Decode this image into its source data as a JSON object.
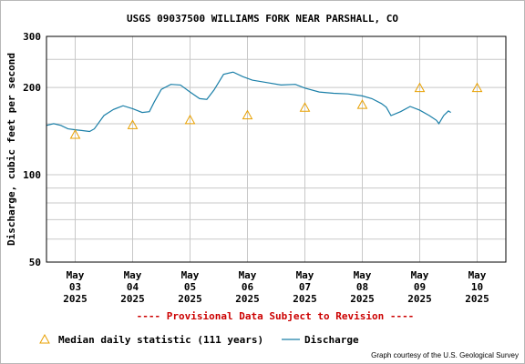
{
  "chart_data": {
    "type": "line",
    "title": "USGS 09037500 WILLIAMS FORK NEAR PARSHALL, CO",
    "ylabel": "Discharge, cubic feet per second",
    "xlabel": "",
    "y_scale": "log",
    "ylim": [
      50,
      300
    ],
    "y_ticks": [
      50,
      100,
      200,
      300
    ],
    "y_minor_gridlines": [
      60,
      70,
      80,
      90,
      150,
      250
    ],
    "xlim": [
      "2025-05-02T12:00",
      "2025-05-10T12:00"
    ],
    "x_ticks": [
      {
        "date": "2025-05-03",
        "month": "May",
        "day": "03",
        "year": "2025"
      },
      {
        "date": "2025-05-04",
        "month": "May",
        "day": "04",
        "year": "2025"
      },
      {
        "date": "2025-05-05",
        "month": "May",
        "day": "05",
        "year": "2025"
      },
      {
        "date": "2025-05-06",
        "month": "May",
        "day": "06",
        "year": "2025"
      },
      {
        "date": "2025-05-07",
        "month": "May",
        "day": "07",
        "year": "2025"
      },
      {
        "date": "2025-05-08",
        "month": "May",
        "day": "08",
        "year": "2025"
      },
      {
        "date": "2025-05-09",
        "month": "May",
        "day": "09",
        "year": "2025"
      },
      {
        "date": "2025-05-10",
        "month": "May",
        "day": "10",
        "year": "2025"
      }
    ],
    "grid": true,
    "legend_position": "bottom",
    "provisional_notice": "---- Provisional Data Subject to Revision ----",
    "credit": "Graph courtesy of the U.S. Geological Survey",
    "series": [
      {
        "name": "Median daily statistic (111 years)",
        "kind": "marker",
        "marker": "triangle",
        "color": "#e8a000",
        "points": [
          {
            "x": "2025-05-03T00:00",
            "y": 138
          },
          {
            "x": "2025-05-04T00:00",
            "y": 149
          },
          {
            "x": "2025-05-05T00:00",
            "y": 155
          },
          {
            "x": "2025-05-06T00:00",
            "y": 161
          },
          {
            "x": "2025-05-07T00:00",
            "y": 171
          },
          {
            "x": "2025-05-08T00:00",
            "y": 175
          },
          {
            "x": "2025-05-09T00:00",
            "y": 200
          },
          {
            "x": "2025-05-10T00:00",
            "y": 200
          }
        ]
      },
      {
        "name": "Discharge",
        "kind": "line",
        "color": "#1a7fa8",
        "points": [
          {
            "x": "2025-05-02T12:00",
            "y": 148
          },
          {
            "x": "2025-05-02T15:00",
            "y": 150
          },
          {
            "x": "2025-05-02T18:00",
            "y": 148
          },
          {
            "x": "2025-05-02T21:00",
            "y": 144
          },
          {
            "x": "2025-05-03T00:00",
            "y": 143
          },
          {
            "x": "2025-05-03T03:00",
            "y": 142
          },
          {
            "x": "2025-05-03T06:00",
            "y": 141
          },
          {
            "x": "2025-05-03T08:00",
            "y": 144
          },
          {
            "x": "2025-05-03T12:00",
            "y": 160
          },
          {
            "x": "2025-05-03T16:00",
            "y": 168
          },
          {
            "x": "2025-05-03T20:00",
            "y": 173
          },
          {
            "x": "2025-05-04T00:00",
            "y": 169
          },
          {
            "x": "2025-05-04T04:00",
            "y": 164
          },
          {
            "x": "2025-05-04T07:00",
            "y": 165
          },
          {
            "x": "2025-05-04T09:00",
            "y": 178
          },
          {
            "x": "2025-05-04T12:00",
            "y": 197
          },
          {
            "x": "2025-05-04T16:00",
            "y": 205
          },
          {
            "x": "2025-05-04T20:00",
            "y": 204
          },
          {
            "x": "2025-05-05T00:00",
            "y": 193
          },
          {
            "x": "2025-05-05T04:00",
            "y": 183
          },
          {
            "x": "2025-05-05T07:00",
            "y": 182
          },
          {
            "x": "2025-05-05T10:00",
            "y": 196
          },
          {
            "x": "2025-05-05T14:00",
            "y": 222
          },
          {
            "x": "2025-05-05T18:00",
            "y": 226
          },
          {
            "x": "2025-05-05T22:00",
            "y": 218
          },
          {
            "x": "2025-05-06T02:00",
            "y": 212
          },
          {
            "x": "2025-05-06T08:00",
            "y": 208
          },
          {
            "x": "2025-05-06T14:00",
            "y": 204
          },
          {
            "x": "2025-05-06T20:00",
            "y": 205
          },
          {
            "x": "2025-05-07T00:00",
            "y": 199
          },
          {
            "x": "2025-05-07T06:00",
            "y": 193
          },
          {
            "x": "2025-05-07T12:00",
            "y": 191
          },
          {
            "x": "2025-05-07T18:00",
            "y": 190
          },
          {
            "x": "2025-05-08T00:00",
            "y": 187
          },
          {
            "x": "2025-05-08T04:00",
            "y": 183
          },
          {
            "x": "2025-05-08T08:00",
            "y": 176
          },
          {
            "x": "2025-05-08T10:00",
            "y": 171
          },
          {
            "x": "2025-05-08T12:00",
            "y": 160
          },
          {
            "x": "2025-05-08T16:00",
            "y": 165
          },
          {
            "x": "2025-05-08T20:00",
            "y": 172
          },
          {
            "x": "2025-05-09T00:00",
            "y": 167
          },
          {
            "x": "2025-05-09T04:00",
            "y": 160
          },
          {
            "x": "2025-05-09T07:00",
            "y": 154
          },
          {
            "x": "2025-05-09T08:00",
            "y": 150
          },
          {
            "x": "2025-05-09T10:00",
            "y": 160
          },
          {
            "x": "2025-05-09T12:00",
            "y": 166
          },
          {
            "x": "2025-05-09T13:00",
            "y": 164
          }
        ]
      }
    ]
  }
}
